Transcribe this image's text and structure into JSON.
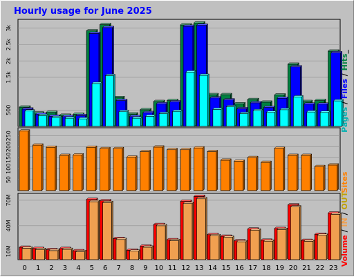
{
  "title": "Hourly usage for June 2025",
  "colors": {
    "background": "#c0c0c0",
    "title": "#0000ff",
    "hits": "#008040",
    "files": "#0000ff",
    "pages": "#00ffff",
    "sites": "#ff8000",
    "volume": "#ff0000",
    "in_out": "#f0a050"
  },
  "chart_data": [
    {
      "type": "bar",
      "title": "Hourly usage for June 2025",
      "panel": "hits-files-pages",
      "categories": [
        "0",
        "1",
        "2",
        "3",
        "4",
        "5",
        "6",
        "7",
        "8",
        "9",
        "10",
        "11",
        "12",
        "13",
        "14",
        "15",
        "16",
        "17",
        "18",
        "19",
        "20",
        "21",
        "22",
        "23"
      ],
      "series": [
        {
          "name": "Hits",
          "values": [
            590,
            410,
            430,
            340,
            370,
            2920,
            3110,
            880,
            380,
            510,
            760,
            790,
            3100,
            3160,
            970,
            970,
            690,
            820,
            740,
            960,
            1900,
            760,
            790,
            2300
          ]
        },
        {
          "name": "Files",
          "values": [
            530,
            370,
            310,
            300,
            330,
            2840,
            3020,
            790,
            300,
            420,
            690,
            750,
            3060,
            3090,
            870,
            810,
            540,
            720,
            580,
            860,
            1820,
            680,
            680,
            2250
          ]
        },
        {
          "name": "Pages",
          "values": [
            470,
            330,
            270,
            250,
            230,
            1310,
            1550,
            450,
            250,
            310,
            390,
            460,
            1660,
            1560,
            520,
            600,
            390,
            480,
            430,
            510,
            900,
            440,
            430,
            780
          ]
        }
      ],
      "ylabel": "Pages / Files / Hits",
      "ytick_labels": [
        "500",
        "1.5k",
        "2k",
        "2.5k",
        "3k"
      ],
      "ytick_values": [
        500,
        1500,
        2000,
        2500,
        3000
      ],
      "ylim": [
        0,
        3270
      ]
    },
    {
      "type": "bar",
      "panel": "sites",
      "categories": [
        "0",
        "1",
        "2",
        "3",
        "4",
        "5",
        "6",
        "7",
        "8",
        "9",
        "10",
        "11",
        "12",
        "13",
        "14",
        "15",
        "16",
        "17",
        "18",
        "19",
        "20",
        "21",
        "22",
        "23"
      ],
      "series": [
        {
          "name": "Sites",
          "values": [
            272,
            208,
            198,
            161,
            163,
            198,
            192,
            192,
            153,
            178,
            199,
            187,
            187,
            195,
            178,
            139,
            134,
            151,
            129,
            193,
            161,
            161,
            110,
            117
          ]
        }
      ],
      "ylabel": "Sites",
      "ytick_labels": [
        "50",
        "100",
        "150",
        "200",
        "250"
      ],
      "ytick_values": [
        50,
        100,
        150,
        200,
        250
      ],
      "ylim": [
        0,
        287
      ]
    },
    {
      "type": "bar",
      "panel": "volume",
      "categories": [
        "0",
        "1",
        "2",
        "3",
        "4",
        "5",
        "6",
        "7",
        "8",
        "9",
        "10",
        "11",
        "12",
        "13",
        "14",
        "15",
        "16",
        "17",
        "18",
        "19",
        "20",
        "21",
        "22",
        "23"
      ],
      "series": [
        {
          "name": "Volume",
          "values": [
            14.6,
            13.2,
            11.8,
            13.2,
            10.5,
            71.0,
            69.4,
            24.9,
            11.1,
            15.9,
            41.4,
            23.5,
            68.7,
            74.5,
            29.5,
            27.6,
            22.2,
            36.1,
            22.9,
            36.7,
            64.5,
            22.7,
            29.9,
            54.9
          ]
        },
        {
          "name": "IN",
          "values": [
            13.5,
            12.0,
            10.7,
            12.1,
            9.5,
            68.3,
            67.3,
            23.8,
            10.1,
            14.7,
            40.0,
            22.5,
            66.2,
            71.8,
            28.3,
            26.4,
            21.1,
            34.8,
            21.8,
            35.5,
            62.2,
            21.7,
            28.8,
            53.4
          ]
        }
      ],
      "ylabel": "Volume / IN / OUT",
      "ytick_labels": [
        "10M",
        "40M",
        "70M"
      ],
      "ytick_values": [
        10,
        40,
        70
      ],
      "ylim": [
        0,
        78.1
      ]
    }
  ],
  "right_labels": {
    "top": [
      {
        "text": "Pages",
        "color": "#00b0b0"
      },
      {
        "text": " / ",
        "color": "#000000"
      },
      {
        "text": "Files",
        "color": "#0000ff"
      },
      {
        "text": " / ",
        "color": "#000000"
      },
      {
        "text": "Hits",
        "color": "#008040"
      },
      {
        "text": "_",
        "color": "#000000"
      }
    ],
    "mid": [
      {
        "text": "Sites",
        "color": "#ff8000"
      }
    ],
    "bot": [
      {
        "text": "Volume",
        "color": "#ff0000"
      },
      {
        "text": " / ",
        "color": "#000000"
      },
      {
        "text": "IN",
        "color": "#f0a050"
      },
      {
        "text": " / ",
        "color": "#000000"
      },
      {
        "text": "OUT",
        "color": "#c0a000"
      }
    ]
  }
}
